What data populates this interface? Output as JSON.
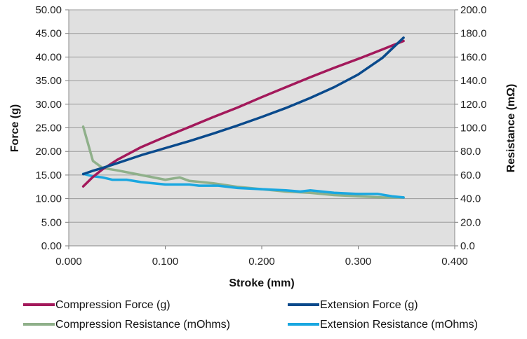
{
  "chart_data": {
    "type": "line",
    "xlabel": "Stroke (mm)",
    "ylabel": "Force (g)",
    "y2label": "Resistance (mΩ)",
    "xlim": [
      0,
      0.4
    ],
    "ylim": [
      0,
      50
    ],
    "y2lim": [
      0,
      200
    ],
    "x_ticks": [
      "0.000",
      "0.100",
      "0.200",
      "0.300",
      "0.400"
    ],
    "y_ticks": [
      "0.00",
      "5.00",
      "10.00",
      "15.00",
      "20.00",
      "25.00",
      "30.00",
      "35.00",
      "40.00",
      "45.00",
      "50.00"
    ],
    "y2_ticks": [
      "0.0",
      "20.0",
      "40.0",
      "60.0",
      "80.0",
      "100.0",
      "120.0",
      "140.0",
      "160.0",
      "180.0",
      "200.0"
    ],
    "grid": "horizontal",
    "plot_background": "#e0e0e0",
    "legend_position": "bottom",
    "series": [
      {
        "name": "Compression Force (g)",
        "axis": "left",
        "color": "#a3195b",
        "points": [
          [
            0.015,
            12.6
          ],
          [
            0.025,
            14.6
          ],
          [
            0.035,
            16.2
          ],
          [
            0.05,
            18.2
          ],
          [
            0.075,
            20.9
          ],
          [
            0.1,
            23.1
          ],
          [
            0.125,
            25.2
          ],
          [
            0.15,
            27.3
          ],
          [
            0.175,
            29.3
          ],
          [
            0.2,
            31.5
          ],
          [
            0.225,
            33.6
          ],
          [
            0.25,
            35.7
          ],
          [
            0.275,
            37.7
          ],
          [
            0.3,
            39.6
          ],
          [
            0.325,
            41.6
          ],
          [
            0.347,
            43.4
          ]
        ]
      },
      {
        "name": "Extension Force (g)",
        "axis": "left",
        "color": "#0a4a8c",
        "points": [
          [
            0.015,
            15.2
          ],
          [
            0.025,
            15.9
          ],
          [
            0.035,
            16.5
          ],
          [
            0.05,
            17.5
          ],
          [
            0.075,
            19.2
          ],
          [
            0.1,
            20.7
          ],
          [
            0.125,
            22.2
          ],
          [
            0.15,
            23.8
          ],
          [
            0.175,
            25.5
          ],
          [
            0.2,
            27.3
          ],
          [
            0.225,
            29.2
          ],
          [
            0.25,
            31.3
          ],
          [
            0.275,
            33.6
          ],
          [
            0.3,
            36.3
          ],
          [
            0.325,
            39.8
          ],
          [
            0.347,
            44.1
          ]
        ]
      },
      {
        "name": "Compression Resistance (mOhms)",
        "axis": "right",
        "color": "#8fb08a",
        "points": [
          [
            0.015,
            101
          ],
          [
            0.025,
            72
          ],
          [
            0.035,
            66
          ],
          [
            0.05,
            64
          ],
          [
            0.075,
            60
          ],
          [
            0.1,
            56
          ],
          [
            0.115,
            58
          ],
          [
            0.125,
            55
          ],
          [
            0.15,
            53
          ],
          [
            0.175,
            50
          ],
          [
            0.2,
            48
          ],
          [
            0.225,
            46
          ],
          [
            0.25,
            45
          ],
          [
            0.275,
            43
          ],
          [
            0.3,
            42
          ],
          [
            0.325,
            41
          ],
          [
            0.347,
            41
          ]
        ]
      },
      {
        "name": "Extension Resistance (mOhms)",
        "axis": "right",
        "color": "#1aa7e0",
        "points": [
          [
            0.015,
            61
          ],
          [
            0.025,
            59
          ],
          [
            0.035,
            58
          ],
          [
            0.045,
            56
          ],
          [
            0.06,
            56
          ],
          [
            0.075,
            54
          ],
          [
            0.1,
            52
          ],
          [
            0.125,
            52
          ],
          [
            0.135,
            51
          ],
          [
            0.155,
            51
          ],
          [
            0.175,
            49
          ],
          [
            0.2,
            48
          ],
          [
            0.225,
            47
          ],
          [
            0.24,
            46
          ],
          [
            0.25,
            47
          ],
          [
            0.275,
            45
          ],
          [
            0.3,
            44
          ],
          [
            0.32,
            44
          ],
          [
            0.335,
            42
          ],
          [
            0.347,
            41
          ]
        ]
      }
    ]
  }
}
